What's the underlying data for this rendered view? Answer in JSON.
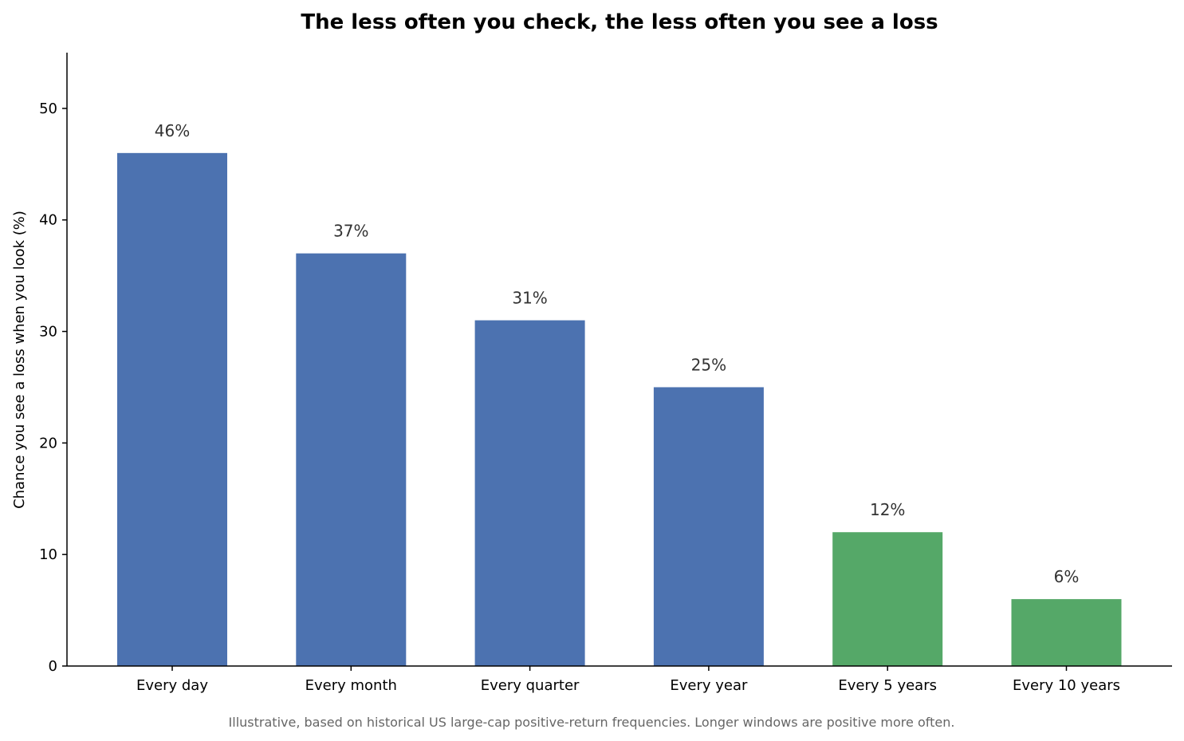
{
  "chart_data": {
    "type": "bar",
    "title": "The less often you check, the less often you see a loss",
    "xlabel": "",
    "ylabel": "Chance you see a loss when you look (%)",
    "categories": [
      "Every day",
      "Every month",
      "Every quarter",
      "Every year",
      "Every 5 years",
      "Every 10 years"
    ],
    "values": [
      46,
      37,
      31,
      25,
      12,
      6
    ],
    "data_labels": [
      "46%",
      "37%",
      "31%",
      "25%",
      "12%",
      "6%"
    ],
    "bar_colors": [
      "#4c72b0",
      "#4c72b0",
      "#4c72b0",
      "#4c72b0",
      "#55a868",
      "#55a868"
    ],
    "ylim": [
      0,
      55
    ],
    "yticks": [
      0,
      10,
      20,
      30,
      40,
      50
    ],
    "grid": false,
    "legend": "none",
    "note": "Illustrative, based on historical US large-cap positive-return frequencies. Longer windows are positive more often."
  }
}
